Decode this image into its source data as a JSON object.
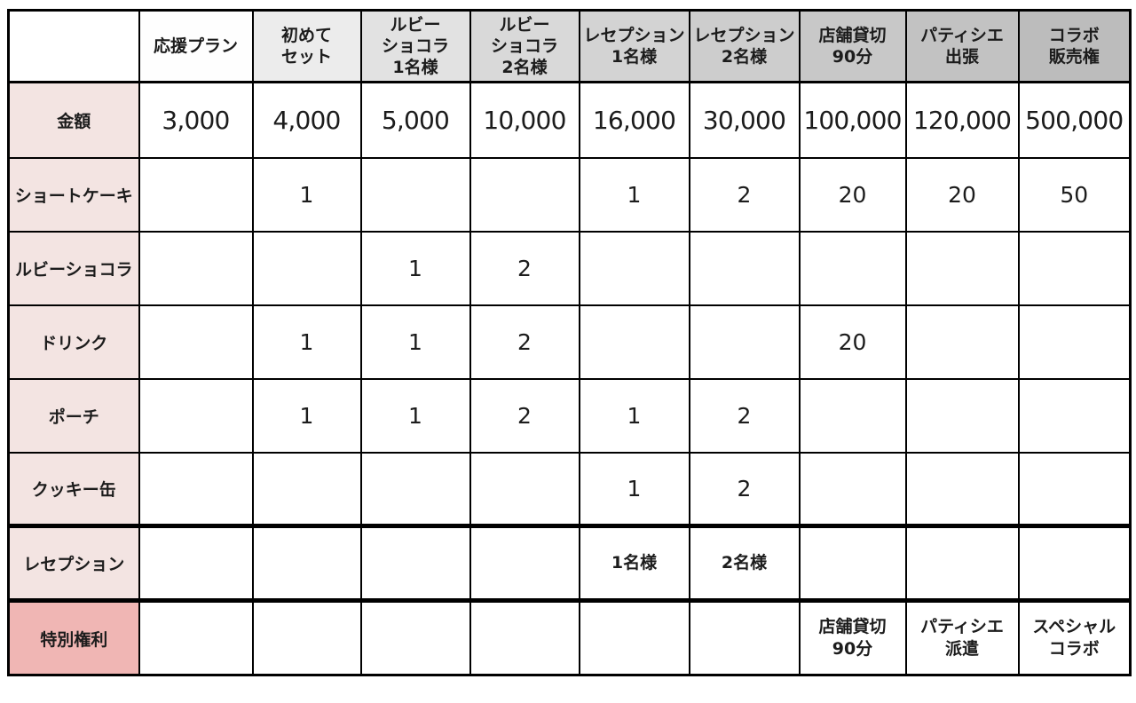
{
  "chart_data": {
    "type": "table",
    "title": "",
    "columns": [
      "",
      "応援プラン",
      "初めてセット",
      "ルビーショコラ 1名様",
      "ルビーショコラ 2名様",
      "レセプション 1名様",
      "レセプション 2名様",
      "店舗貸切 90分",
      "パティシエ出張",
      "コラボ販売権"
    ],
    "rows": [
      [
        "金額",
        "3,000",
        "4,000",
        "5,000",
        "10,000",
        "16,000",
        "30,000",
        "100,000",
        "120,000",
        "500,000"
      ],
      [
        "ショートケーキ",
        "",
        "1",
        "",
        "",
        "1",
        "2",
        "20",
        "20",
        "50"
      ],
      [
        "ルビーショコラ",
        "",
        "",
        "1",
        "2",
        "",
        "",
        "",
        "",
        ""
      ],
      [
        "ドリンク",
        "",
        "1",
        "1",
        "2",
        "",
        "",
        "20",
        "",
        ""
      ],
      [
        "ポーチ",
        "",
        "1",
        "1",
        "2",
        "1",
        "2",
        "",
        "",
        ""
      ],
      [
        "クッキー缶",
        "",
        "",
        "",
        "",
        "1",
        "2",
        "",
        "",
        ""
      ],
      [
        "レセプション",
        "",
        "",
        "",
        "",
        "1名様",
        "2名様",
        "",
        "",
        ""
      ],
      [
        "特別権利",
        "",
        "",
        "",
        "",
        "",
        "",
        "店舗貸切 90分",
        "パティシエ派遣",
        "スペシャルコラボ"
      ]
    ],
    "layout_hints": {
      "header_shading": "light-to-dark gray left to right",
      "thick_separators_above_rows": [
        "レセプション",
        "特別権利"
      ],
      "grid": true
    }
  },
  "colors": {
    "border": "#000000",
    "label_pink_light": "#f3e4e2",
    "label_pink_dark": "#f0b6b4",
    "text": "#1c1c1c"
  },
  "table": {
    "header": {
      "corner": "",
      "columns": [
        {
          "label": "応援プラン",
          "bg": "#fefefe"
        },
        {
          "label": "初めて\nセット",
          "bg": "#ececec"
        },
        {
          "label": "ルビー\nショコラ\n1名様",
          "bg": "#e2e2e2"
        },
        {
          "label": "ルビー\nショコラ\n2名様",
          "bg": "#d9d9d9"
        },
        {
          "label": "レセプション\n1名様",
          "bg": "#d3d3d3"
        },
        {
          "label": "レセプション\n2名様",
          "bg": "#cdcdcd"
        },
        {
          "label": "店舗貸切\n90分",
          "bg": "#c8c8c8"
        },
        {
          "label": "パティシエ\n出張",
          "bg": "#c2c2c2"
        },
        {
          "label": "コラボ\n販売権",
          "bg": "#bcbcbc"
        }
      ]
    },
    "rows": [
      {
        "label": "金額",
        "label_bg": "#f3e4e2",
        "variant": "amount",
        "thick_top": false,
        "cells": [
          "3,000",
          "4,000",
          "5,000",
          "10,000",
          "16,000",
          "30,000",
          "100,000",
          "120,000",
          "500,000"
        ]
      },
      {
        "label": "ショートケーキ",
        "label_bg": "#f3e4e2",
        "variant": "",
        "thick_top": false,
        "cells": [
          "",
          "1",
          "",
          "",
          "1",
          "2",
          "20",
          "20",
          "50"
        ]
      },
      {
        "label": "ルビーショコラ",
        "label_bg": "#f3e4e2",
        "variant": "",
        "thick_top": false,
        "cells": [
          "",
          "",
          "1",
          "2",
          "",
          "",
          "",
          "",
          ""
        ]
      },
      {
        "label": "ドリンク",
        "label_bg": "#f3e4e2",
        "variant": "",
        "thick_top": false,
        "cells": [
          "",
          "1",
          "1",
          "2",
          "",
          "",
          "20",
          "",
          ""
        ]
      },
      {
        "label": "ポーチ",
        "label_bg": "#f3e4e2",
        "variant": "",
        "thick_top": false,
        "cells": [
          "",
          "1",
          "1",
          "2",
          "1",
          "2",
          "",
          "",
          ""
        ]
      },
      {
        "label": "クッキー缶",
        "label_bg": "#f3e4e2",
        "variant": "",
        "thick_top": false,
        "cells": [
          "",
          "",
          "",
          "",
          "1",
          "2",
          "",
          "",
          ""
        ]
      },
      {
        "label": "レセプション",
        "label_bg": "#f3e4e2",
        "variant": "small",
        "thick_top": true,
        "cells": [
          "",
          "",
          "",
          "",
          "1名様",
          "2名様",
          "",
          "",
          ""
        ]
      },
      {
        "label": "特別権利",
        "label_bg": "#f0b6b4",
        "variant": "small",
        "thick_top": true,
        "cells": [
          "",
          "",
          "",
          "",
          "",
          "",
          "店舗貸切\n90分",
          "パティシエ\n派遣",
          "スペシャル\nコラボ"
        ]
      }
    ]
  }
}
